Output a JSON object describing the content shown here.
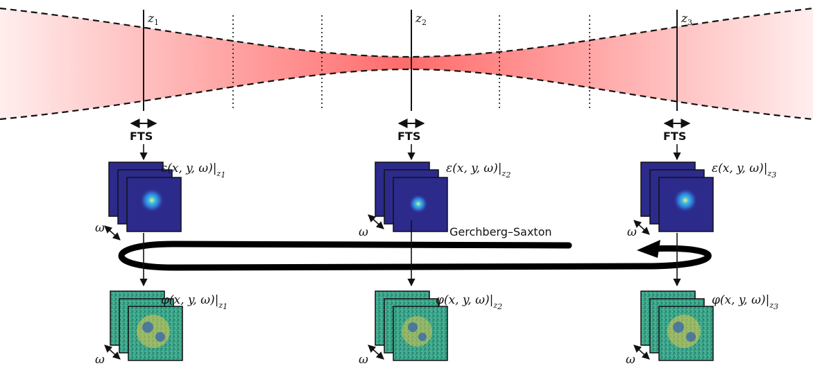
{
  "planes": [
    {
      "name": "z",
      "sub": "1"
    },
    {
      "name": "z",
      "sub": "2"
    },
    {
      "name": "z",
      "sub": "3"
    }
  ],
  "fts_label": "FTS",
  "omega_label": "ω",
  "amplitude_label": {
    "expr": "ε(x, y, ω)|",
    "sub_prefix": "z"
  },
  "phase_label": {
    "expr": "φ(x, y, ω)|",
    "sub_prefix": "z"
  },
  "loop_label": "Gerchberg–Saxton",
  "colors": {
    "beam": "#ff6b6b",
    "amplitude_bg": "#2c2a8a",
    "amplitude_spot": "#3fa0e0",
    "phase_bg": "#3aa58a",
    "phase_speckle": "#e0c84a"
  }
}
